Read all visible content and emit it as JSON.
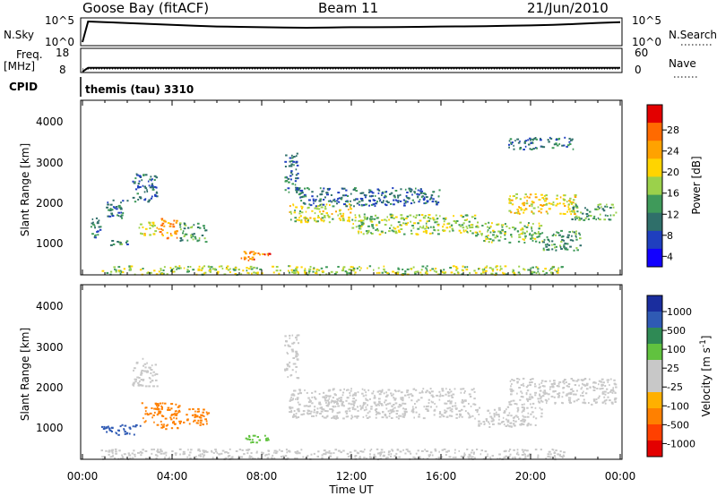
{
  "header": {
    "station": "Goose Bay (fitACF)",
    "beam": "Beam 11",
    "date": "21/Jun/2010"
  },
  "summary_panels": {
    "nsky": {
      "label": "N.Sky",
      "ticks": [
        "10^5",
        "10^0"
      ],
      "right_label": "N.Search",
      "right_ticks": [
        "10^5",
        "10^0"
      ]
    },
    "freq": {
      "label_line1": "Freq.",
      "label_line2": "[MHz]",
      "ticks": [
        "18",
        "8"
      ],
      "right_label": "Nave",
      "right_ticks": [
        "60",
        "0"
      ]
    },
    "cpid": {
      "label": "CPID",
      "value": "themis (tau) 3310"
    }
  },
  "panels": {
    "power": {
      "ylabel": "Slant Range [km]",
      "yticks": [
        "4000",
        "3000",
        "2000",
        "1000"
      ],
      "colorbar": {
        "title": "Power [dB]",
        "labels": [
          "28",
          "24",
          "20",
          "16",
          "12",
          "8",
          "4"
        ],
        "colors": [
          "#e30000",
          "#ff6a00",
          "#ffa200",
          "#ffd400",
          "#9bd14b",
          "#3f9a5a",
          "#2f6f6a",
          "#1f3fbf",
          "#1200ff"
        ]
      }
    },
    "velocity": {
      "ylabel": "Slant Range [km]",
      "yticks": [
        "4000",
        "3000",
        "2000",
        "1000"
      ],
      "colorbar": {
        "title": "Velocity [m s",
        "title_sup": "-1",
        "title_end": "]",
        "labels": [
          "1000",
          "500",
          "100",
          "25",
          "-25",
          "-100",
          "-500",
          "-1000"
        ],
        "colors": [
          "#1a2d9e",
          "#2f5ab4",
          "#2f8a55",
          "#61c23f",
          "#c8c8c8",
          "#c8c8c8",
          "#ffb000",
          "#ff8000",
          "#ff4000",
          "#e30000"
        ]
      }
    }
  },
  "xaxis": {
    "ticks": [
      "00:00",
      "04:00",
      "08:00",
      "12:00",
      "16:00",
      "20:00",
      "00:00"
    ],
    "label": "Time UT"
  },
  "chart_data": [
    {
      "type": "line",
      "title": "N.Sky / N.Search",
      "x_unit": "hours UT",
      "y_scale": "log",
      "x": [
        0,
        0.25,
        0.5,
        1,
        2,
        3,
        4,
        5,
        6,
        7,
        8,
        9,
        10,
        11,
        12,
        13,
        14,
        15,
        16,
        17,
        18,
        19,
        20,
        21,
        22,
        23,
        24
      ],
      "series": [
        {
          "values": [
            1,
            100000,
            90000,
            70000,
            40000,
            25000,
            15000,
            9000,
            6000,
            5000,
            4000,
            3500,
            3000,
            3500,
            4000,
            4000,
            4500,
            5000,
            6000,
            6500,
            7000,
            9000,
            11000,
            15000,
            25000,
            45000,
            70000
          ]
        }
      ],
      "ylim": [
        1,
        100000
      ]
    },
    {
      "type": "line",
      "title": "Freq / Nave",
      "x_unit": "hours UT",
      "x": [
        0,
        0.25,
        24
      ],
      "series": [
        {
          "values": [
            8,
            10.5,
            10.5
          ]
        }
      ],
      "ylim": [
        8,
        18
      ]
    },
    {
      "type": "scatter",
      "title": "Power",
      "x_unit": "hours UT",
      "y_unit": "km",
      "xlim": [
        0,
        24
      ],
      "ylim": [
        180,
        4500
      ],
      "colorbar_range_dB": [
        0,
        32
      ],
      "regions": [
        {
          "x0": 0.3,
          "x1": 0.8,
          "y0": 1100,
          "y1": 1650,
          "value": 6
        },
        {
          "x0": 1.0,
          "x1": 2.0,
          "y0": 1600,
          "y1": 2050,
          "value": 6
        },
        {
          "x0": 2.2,
          "x1": 3.3,
          "y0": 2000,
          "y1": 2700,
          "value": 5
        },
        {
          "x0": 2.5,
          "x1": 3.3,
          "y0": 1150,
          "y1": 1500,
          "value": 16
        },
        {
          "x0": 3.3,
          "x1": 4.2,
          "y0": 1100,
          "y1": 1600,
          "value": 22
        },
        {
          "x0": 4.3,
          "x1": 5.5,
          "y0": 1000,
          "y1": 1500,
          "value": 10
        },
        {
          "x0": 1.2,
          "x1": 2.0,
          "y0": 900,
          "y1": 1050,
          "value": 8
        },
        {
          "x0": 0.8,
          "x1": 8.0,
          "y0": 200,
          "y1": 420,
          "value": 14
        },
        {
          "x0": 7.0,
          "x1": 8.4,
          "y0": 550,
          "y1": 800,
          "value": 24
        },
        {
          "x0": 8.4,
          "x1": 21.5,
          "y0": 200,
          "y1": 420,
          "value": 14
        },
        {
          "x0": 9.0,
          "x1": 9.6,
          "y0": 2200,
          "y1": 3300,
          "value": 6
        },
        {
          "x0": 9.2,
          "x1": 12.0,
          "y0": 1500,
          "y1": 1950,
          "value": 16
        },
        {
          "x0": 12.0,
          "x1": 17.5,
          "y0": 1200,
          "y1": 1700,
          "value": 14
        },
        {
          "x0": 17.5,
          "x1": 20.5,
          "y0": 1000,
          "y1": 1500,
          "value": 13
        },
        {
          "x0": 9.5,
          "x1": 16.0,
          "y0": 1900,
          "y1": 2350,
          "value": 5
        },
        {
          "x0": 19.0,
          "x1": 22.0,
          "y0": 1700,
          "y1": 2200,
          "value": 18
        },
        {
          "x0": 21.8,
          "x1": 23.8,
          "y0": 1550,
          "y1": 1950,
          "value": 10
        },
        {
          "x0": 20.5,
          "x1": 22.2,
          "y0": 800,
          "y1": 1300,
          "value": 9
        },
        {
          "x0": 19.0,
          "x1": 22.0,
          "y0": 3300,
          "y1": 3600,
          "value": 6
        }
      ]
    },
    {
      "type": "scatter",
      "title": "Velocity",
      "x_unit": "hours UT",
      "y_unit": "km",
      "xlim": [
        0,
        24
      ],
      "ylim": [
        180,
        4500
      ],
      "regions": [
        {
          "x0": 0.8,
          "x1": 2.6,
          "y0": 800,
          "y1": 1050,
          "value": 150
        },
        {
          "x0": 2.6,
          "x1": 4.3,
          "y0": 1100,
          "y1": 1600,
          "value": -400
        },
        {
          "x0": 3.3,
          "x1": 4.6,
          "y0": 950,
          "y1": 1150,
          "value": -150
        },
        {
          "x0": 4.5,
          "x1": 5.6,
          "y0": 1000,
          "y1": 1450,
          "value": -200
        },
        {
          "x0": 2.2,
          "x1": 3.3,
          "y0": 2000,
          "y1": 2700,
          "value": 0
        },
        {
          "x0": 0.8,
          "x1": 21.5,
          "y0": 200,
          "y1": 450,
          "value": 0
        },
        {
          "x0": 7.2,
          "x1": 8.3,
          "y0": 600,
          "y1": 800,
          "value": 60
        },
        {
          "x0": 9.2,
          "x1": 17.5,
          "y0": 1200,
          "y1": 1950,
          "value": 0
        },
        {
          "x0": 17.5,
          "x1": 20.5,
          "y0": 1000,
          "y1": 1500,
          "value": 0
        },
        {
          "x0": 19.0,
          "x1": 23.8,
          "y0": 1550,
          "y1": 2200,
          "value": 0
        },
        {
          "x0": 9.0,
          "x1": 9.6,
          "y0": 2200,
          "y1": 3300,
          "value": 0
        }
      ]
    }
  ]
}
